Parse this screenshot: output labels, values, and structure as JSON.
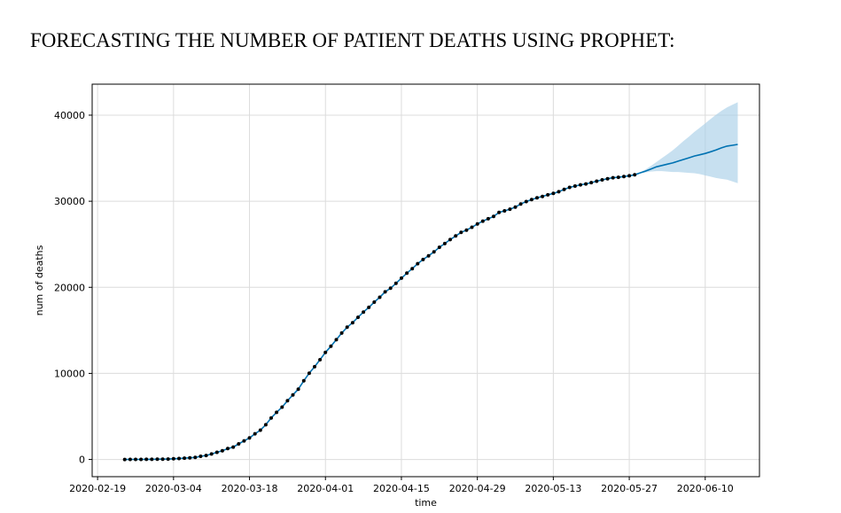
{
  "heading": "FORECASTING THE NUMBER OF PATIENT DEATHS USING PROPHET:",
  "chart_data": {
    "type": "line",
    "xlabel": "time",
    "ylabel": "num of deaths",
    "x_ticks": [
      "2020-02-19",
      "2020-03-04",
      "2020-03-18",
      "2020-04-01",
      "2020-04-15",
      "2020-04-29",
      "2020-05-13",
      "2020-05-27",
      "2020-06-10"
    ],
    "y_ticks": [
      0,
      10000,
      20000,
      30000,
      40000
    ],
    "xlim": [
      "2020-02-18",
      "2020-06-20"
    ],
    "ylim": [
      -2000,
      43600
    ],
    "grid": true,
    "colors": {
      "forecast": "#0072b2",
      "interval": "#a9cfe8",
      "actual": "#000000"
    },
    "observed": {
      "start_date": "2020-02-24",
      "values": [
        2,
        5,
        10,
        12,
        17,
        21,
        29,
        34,
        52,
        79,
        107,
        148,
        197,
        233,
        366,
        463,
        631,
        827,
        1016,
        1266,
        1441,
        1809,
        2158,
        2503,
        2978,
        3405,
        4032,
        4825,
        5476,
        6077,
        6820,
        7503,
        8165,
        9134,
        10023,
        10779,
        11591,
        12428,
        13155,
        13915,
        14681,
        15362,
        15887,
        16523,
        17127,
        17669,
        18279,
        18849,
        19468,
        19899,
        20465,
        21067,
        21645,
        22170,
        22745,
        23227,
        23660,
        24114,
        24648,
        25085,
        25549,
        25969,
        26384,
        26644,
        26977,
        27359,
        27682,
        27967,
        28236,
        28710,
        28884,
        29079,
        29315,
        29684,
        29958,
        30201,
        30395,
        30560,
        30739,
        30911,
        31106,
        31368,
        31610,
        31763,
        31908,
        32007,
        32169,
        32330,
        32486,
        32616,
        32735,
        32785,
        32877,
        32955,
        33072
      ]
    },
    "forecast": {
      "end_date": "2020-06-16",
      "values": [
        33300,
        33500,
        33750,
        34000,
        34150,
        34300,
        34450,
        34650,
        34850,
        35050,
        35250,
        35400,
        35550,
        35750,
        35950,
        36200,
        36400,
        36500,
        36600
      ],
      "upper": [
        33350,
        33700,
        34100,
        34550,
        35000,
        35450,
        35900,
        36450,
        37000,
        37500,
        38050,
        38550,
        39050,
        39550,
        40050,
        40500,
        40900,
        41200,
        41500
      ],
      "lower": [
        33250,
        33350,
        33450,
        33500,
        33500,
        33450,
        33400,
        33400,
        33350,
        33300,
        33250,
        33150,
        33000,
        32850,
        32700,
        32600,
        32500,
        32300,
        32100
      ]
    }
  }
}
